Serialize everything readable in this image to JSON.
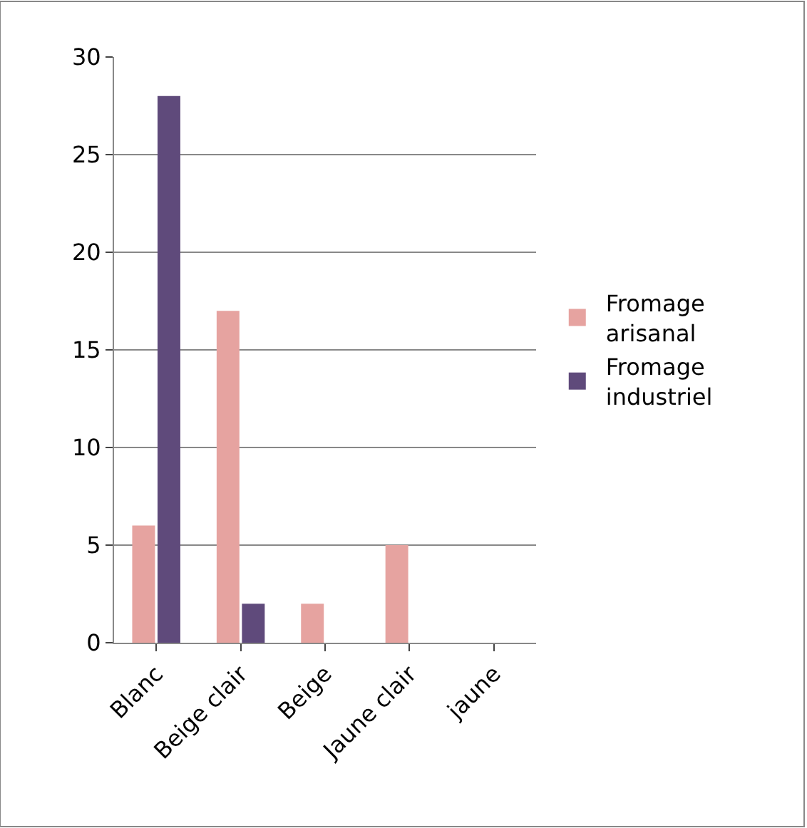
{
  "chart_data": {
    "type": "bar",
    "categories": [
      "Blanc",
      "Beige clair",
      "Beige",
      "Jaune clair",
      "jaune"
    ],
    "series": [
      {
        "name": "Fromage arisanal",
        "color": "#e6a3a0",
        "values": [
          6,
          17,
          2,
          5,
          null
        ]
      },
      {
        "name": "Fromage industriel",
        "color": "#5f4a7b",
        "values": [
          28,
          2,
          null,
          null,
          null
        ]
      }
    ],
    "ylim": [
      0,
      30
    ],
    "yticks": [
      0,
      5,
      10,
      15,
      20,
      25,
      30
    ],
    "grid": "y",
    "legend": "right"
  }
}
